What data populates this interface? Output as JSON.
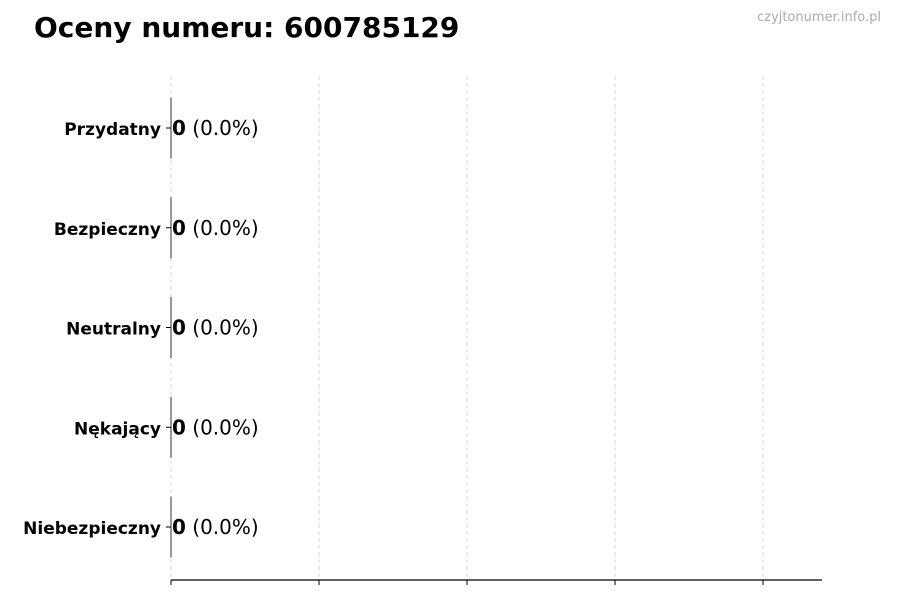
{
  "chart_data": {
    "type": "bar",
    "orientation": "horizontal",
    "title": "Oceny numeru: 600785129",
    "categories": [
      "Przydatny",
      "Bezpieczny",
      "Neutralny",
      "Nękający",
      "Niebezpieczny"
    ],
    "values": [
      0,
      0,
      0,
      0,
      0
    ],
    "data_labels": [
      {
        "count": "0",
        "percent": "(0.0%)"
      },
      {
        "count": "0",
        "percent": "(0.0%)"
      },
      {
        "count": "0",
        "percent": "(0.0%)"
      },
      {
        "count": "0",
        "percent": "(0.0%)"
      },
      {
        "count": "0",
        "percent": "(0.0%)"
      }
    ],
    "xlabel": "",
    "ylabel": "",
    "x_tick_count": 5,
    "grid": "vertical dashed",
    "legend": "none",
    "colors": {
      "grid": "#d9d9d9",
      "axis": "#000000",
      "bar_edge": "#333333"
    }
  },
  "watermark": "czyjtonumer.info.pl"
}
